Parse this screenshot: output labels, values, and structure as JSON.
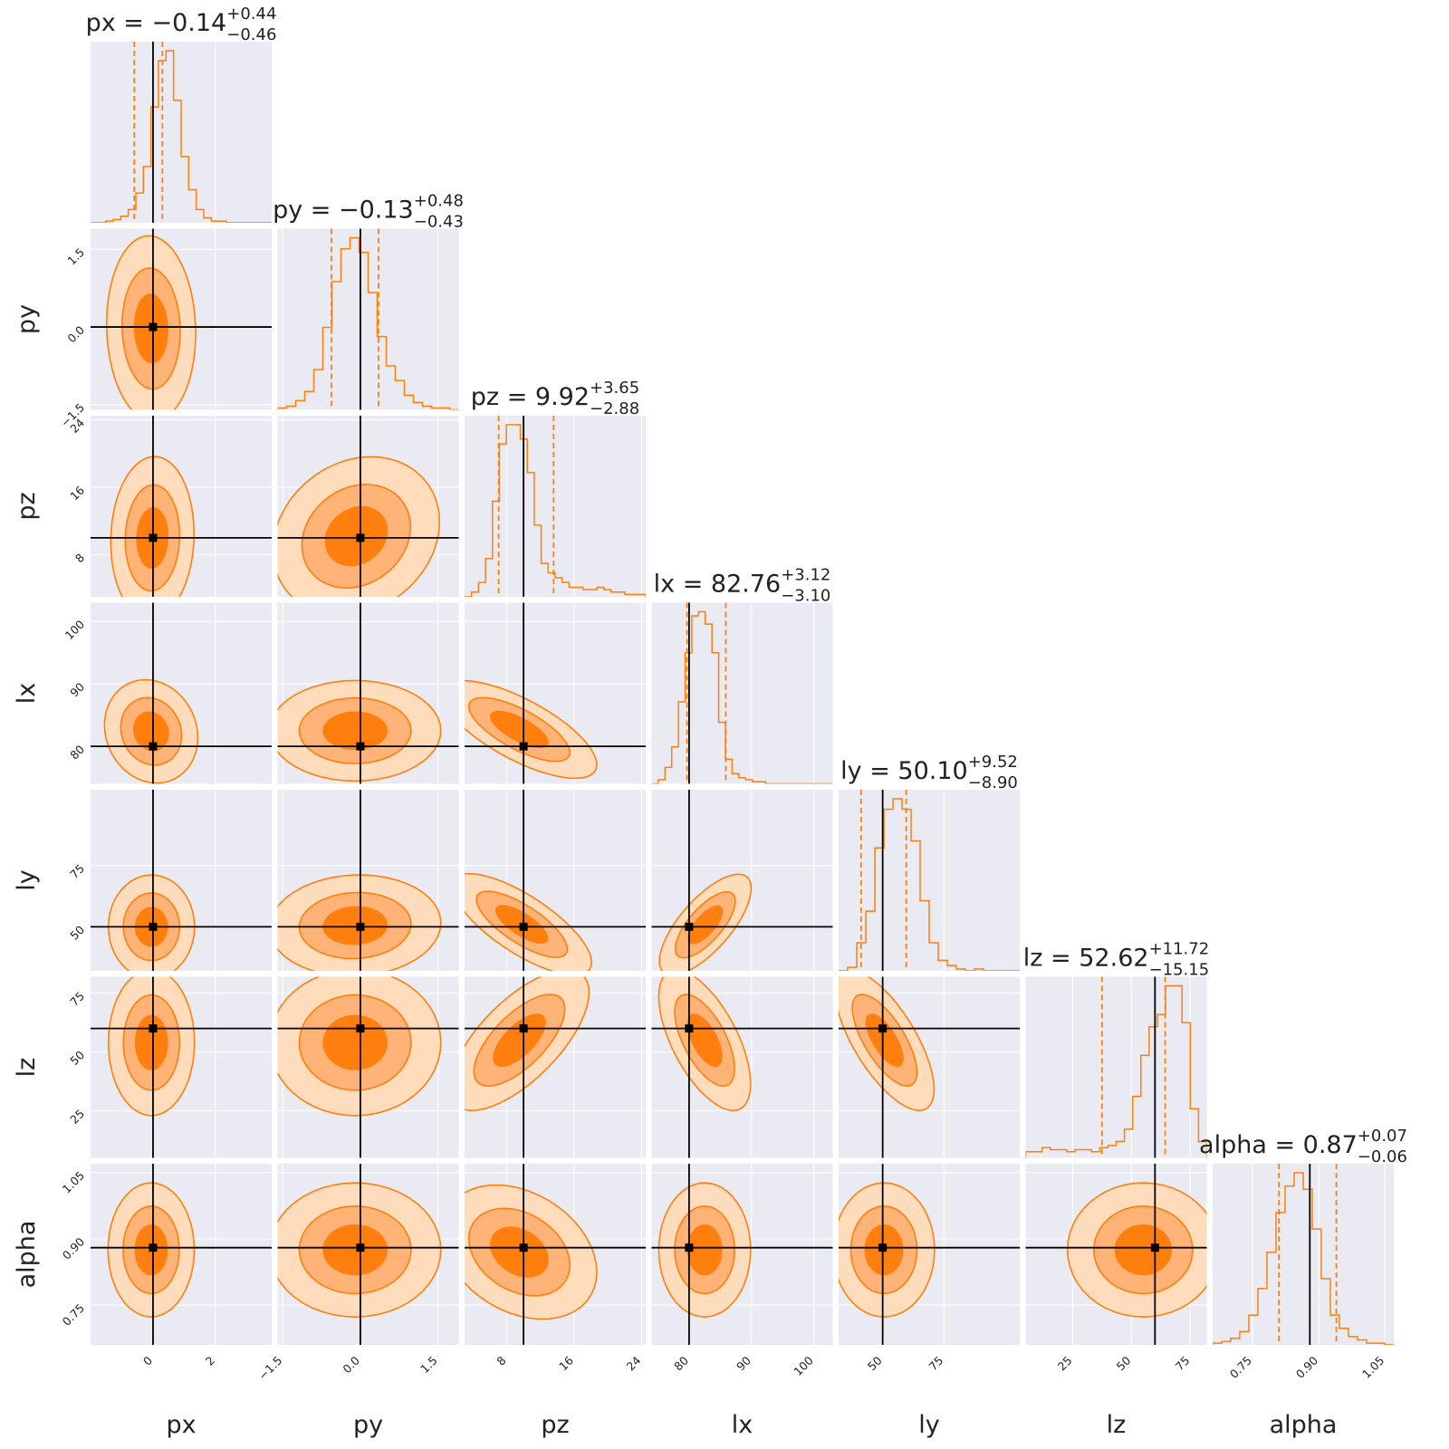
{
  "chart_data": {
    "type": "corner",
    "parameters": [
      "px",
      "py",
      "pz",
      "lx",
      "ly",
      "lz",
      "alpha"
    ],
    "axis_labels": [
      "px",
      "py",
      "pz",
      "lx",
      "ly",
      "lz",
      "alpha"
    ],
    "ranges": {
      "px": [
        -2.0,
        3.8
      ],
      "py": [
        -1.6,
        1.9
      ],
      "pz": [
        3.0,
        24.5
      ],
      "lx": [
        74.0,
        103.0
      ],
      "ly": [
        32.0,
        106.0
      ],
      "lz": [
        5.0,
        82.0
      ],
      "alpha": [
        0.66,
        1.07
      ]
    },
    "ticks": {
      "px": [
        0,
        2
      ],
      "py": [
        -1.5,
        0.0,
        1.5
      ],
      "pz": [
        8,
        16,
        24
      ],
      "lx": [
        80,
        90,
        100
      ],
      "ly": [
        50,
        75
      ],
      "lz": [
        25,
        50,
        75
      ],
      "alpha": [
        0.75,
        0.9,
        1.05
      ]
    },
    "tick_labels": {
      "px": [
        "0",
        "2"
      ],
      "py": [
        "−1.5",
        "0.0",
        "1.5"
      ],
      "pz": [
        "8",
        "16",
        "24"
      ],
      "lx": [
        "80",
        "90",
        "100"
      ],
      "ly": [
        "50",
        "75"
      ],
      "lz": [
        "25",
        "50",
        "75"
      ],
      "alpha": [
        "0.75",
        "0.90",
        "1.05"
      ]
    },
    "truths": {
      "px": 0.0,
      "py": 0.0,
      "pz": 10.0,
      "lx": 80.0,
      "ly": 50.0,
      "lz": 60.0,
      "alpha": 0.88
    },
    "titles": [
      {
        "name": "px",
        "base": "px = −0.14",
        "sup": "+0.44",
        "sub": "−0.46"
      },
      {
        "name": "py",
        "base": "py = −0.13",
        "sup": "+0.48",
        "sub": "−0.43"
      },
      {
        "name": "pz",
        "base": "pz = 9.92",
        "sup": "+3.65",
        "sub": "−2.88"
      },
      {
        "name": "lx",
        "base": "lx = 82.76",
        "sup": "+3.12",
        "sub": "−3.10"
      },
      {
        "name": "ly",
        "base": "ly = 50.10",
        "sup": "+9.52",
        "sub": "−8.90"
      },
      {
        "name": "lz",
        "base": "lz = 52.62",
        "sup": "+11.72",
        "sub": "−15.15"
      },
      {
        "name": "alpha",
        "base": "alpha = 0.87",
        "sup": "+0.07",
        "sub": "−0.06"
      }
    ],
    "marginals": {
      "px": {
        "median": -0.14,
        "lower": -0.6,
        "upper": 0.3,
        "counts": [
          0,
          0,
          1,
          2,
          4,
          8,
          18,
          34,
          70,
          98,
          104,
          74,
          40,
          20,
          8,
          3,
          1,
          1,
          0,
          0,
          0,
          0,
          0,
          0
        ]
      },
      "py": {
        "median": -0.13,
        "lower": -0.56,
        "upper": 0.35,
        "counts": [
          1,
          2,
          5,
          10,
          22,
          45,
          70,
          88,
          94,
          86,
          64,
          40,
          24,
          16,
          8,
          4,
          2,
          1,
          1,
          0
        ]
      },
      "pz": {
        "median": 9.92,
        "lower": 7.04,
        "upper": 13.57,
        "counts": [
          0,
          2,
          6,
          16,
          40,
          64,
          72,
          72,
          66,
          52,
          30,
          14,
          10,
          8,
          6,
          4,
          4,
          3,
          3,
          4,
          3,
          2,
          2,
          1,
          1,
          1
        ]
      },
      "lx": {
        "median": 82.76,
        "lower": 79.66,
        "upper": 85.88,
        "counts": [
          0,
          2,
          8,
          18,
          40,
          64,
          82,
          84,
          78,
          64,
          30,
          12,
          5,
          3,
          2,
          1,
          1,
          0,
          0,
          0,
          0,
          0,
          0,
          0,
          0,
          0,
          0
        ]
      },
      "ly": {
        "median": 50.1,
        "lower": 41.2,
        "upper": 59.62,
        "counts": [
          0,
          2,
          16,
          34,
          70,
          92,
          98,
          92,
          74,
          40,
          16,
          6,
          3,
          1,
          0,
          1,
          0,
          0,
          0,
          0
        ]
      },
      "lz": {
        "median": 52.62,
        "lower": 37.47,
        "upper": 64.34,
        "counts": [
          3,
          3,
          5,
          4,
          4,
          3,
          4,
          4,
          3,
          5,
          6,
          8,
          14,
          30,
          50,
          64,
          70,
          84,
          84,
          66,
          24,
          8
        ]
      },
      "alpha": {
        "median": 0.87,
        "lower": 0.81,
        "upper": 0.94,
        "counts": [
          1,
          2,
          4,
          8,
          18,
          34,
          56,
          80,
          96,
          104,
          94,
          70,
          40,
          18,
          10,
          5,
          3,
          1,
          1,
          0
        ]
      }
    },
    "contours": [
      {
        "x": "px",
        "y": "py",
        "cx": -0.06,
        "cy": -0.03,
        "sx": 0.62,
        "sy": 0.78,
        "rho": -0.05
      },
      {
        "x": "px",
        "y": "pz",
        "cx": -0.02,
        "cy": 10.0,
        "sx": 0.58,
        "sy": 4.2,
        "rho": 0.05
      },
      {
        "x": "py",
        "y": "pz",
        "cx": -0.08,
        "cy": 10.2,
        "sx": 0.7,
        "sy": 4.1,
        "rho": 0.18
      },
      {
        "x": "px",
        "y": "lx",
        "cx": -0.06,
        "cy": 82.4,
        "sx": 0.65,
        "sy": 3.6,
        "rho": -0.12
      },
      {
        "x": "py",
        "y": "lx",
        "cx": -0.1,
        "cy": 82.5,
        "sx": 0.72,
        "sy": 3.5,
        "rho": 0.0
      },
      {
        "x": "pz",
        "y": "lx",
        "cx": 9.5,
        "cy": 82.7,
        "sx": 4.0,
        "sy": 3.4,
        "rho": -0.72
      },
      {
        "x": "px",
        "y": "ly",
        "cx": -0.05,
        "cy": 50.0,
        "sx": 0.6,
        "sy": 9.2,
        "rho": 0.0
      },
      {
        "x": "py",
        "y": "ly",
        "cx": -0.1,
        "cy": 50.5,
        "sx": 0.72,
        "sy": 9.0,
        "rho": 0.05
      },
      {
        "x": "pz",
        "y": "ly",
        "cx": 9.8,
        "cy": 51.0,
        "sx": 3.6,
        "sy": 9.0,
        "rho": -0.75
      },
      {
        "x": "lx",
        "y": "ly",
        "cx": 82.6,
        "cy": 50.8,
        "sx": 3.2,
        "sy": 9.0,
        "rho": 0.72
      },
      {
        "x": "px",
        "y": "lz",
        "cx": -0.05,
        "cy": 54.0,
        "sx": 0.6,
        "sy": 13.5,
        "rho": 0.0
      },
      {
        "x": "py",
        "y": "lz",
        "cx": -0.1,
        "cy": 54.0,
        "sx": 0.72,
        "sy": 13.5,
        "rho": 0.0
      },
      {
        "x": "pz",
        "y": "lz",
        "cx": 9.5,
        "cy": 55.0,
        "sx": 3.6,
        "sy": 13.0,
        "rho": 0.68
      },
      {
        "x": "lx",
        "y": "lz",
        "cx": 82.5,
        "cy": 55.0,
        "sx": 3.2,
        "sy": 13.0,
        "rho": -0.62
      },
      {
        "x": "ly",
        "y": "lz",
        "cx": 50.8,
        "cy": 55.0,
        "sx": 8.8,
        "sy": 13.0,
        "rho": -0.7
      },
      {
        "x": "px",
        "y": "alpha",
        "cx": -0.06,
        "cy": 0.875,
        "sx": 0.6,
        "sy": 0.066,
        "rho": 0.0
      },
      {
        "x": "py",
        "y": "alpha",
        "cx": -0.1,
        "cy": 0.875,
        "sx": 0.72,
        "sy": 0.066,
        "rho": 0.0
      },
      {
        "x": "pz",
        "y": "alpha",
        "cx": 9.5,
        "cy": 0.87,
        "sx": 4.0,
        "sy": 0.066,
        "rho": -0.3
      },
      {
        "x": "lx",
        "y": "alpha",
        "cx": 82.5,
        "cy": 0.875,
        "sx": 3.2,
        "sy": 0.066,
        "rho": 0.0
      },
      {
        "x": "ly",
        "y": "alpha",
        "cx": 50.5,
        "cy": 0.875,
        "sx": 9.0,
        "sy": 0.066,
        "rho": 0.0
      },
      {
        "x": "lz",
        "y": "alpha",
        "cx": 55.0,
        "cy": 0.875,
        "sx": 14.0,
        "sy": 0.066,
        "rho": 0.0
      }
    ],
    "colors": {
      "panel_background": "#eaeaf2",
      "grid": "#ffffff",
      "histogram": "#ff7f0e",
      "quantile_lines": "#ff7f0e",
      "contour_levels": [
        "#ffdcbc",
        "#ffb377",
        "#ff7f0e"
      ],
      "contour_lines": "#ff7f0e",
      "truth_lines": "#000000"
    },
    "grid": true,
    "layout": "7x7 lower-triangular corner plot"
  }
}
